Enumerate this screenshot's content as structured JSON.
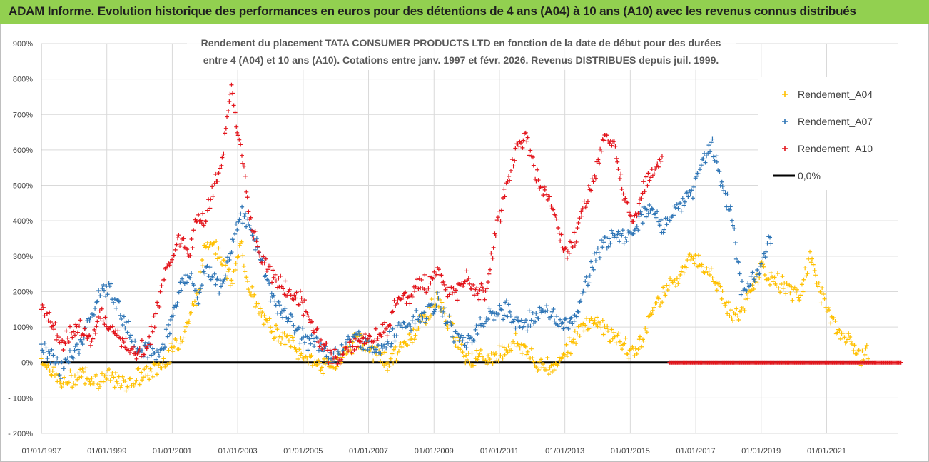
{
  "header": {
    "title": "ADAM Informe. Evolution historique des performances en euros pour des détentions de 4 ans (A04) à 10 ans (A10) avec les revenus connus distribués"
  },
  "colors": {
    "header_bg": "#92d050",
    "a04": "#ffc000",
    "a07": "#2e75b6",
    "a10": "#e3141b",
    "zero": "#000000",
    "grid": "#d9d9d9"
  },
  "chart_data": {
    "type": "scatter",
    "title_lines": [
      "Rendement du placement TATA CONSUMER PRODUCTS LTD en fonction de la date de début pour des durées",
      "entre 4 (A04) et 10 ans (A10).  Cotations entre janv. 1997 et févr. 2026. Revenus DISTRIBUES depuis juil. 1999."
    ],
    "xlabel": "",
    "ylabel": "",
    "x_ticks": [
      "01/01/1997",
      "01/01/1999",
      "01/01/2001",
      "01/01/2003",
      "01/01/2005",
      "01/01/2007",
      "01/01/2009",
      "01/01/2011",
      "01/01/2013",
      "01/01/2015",
      "01/01/2017",
      "01/01/2019",
      "01/01/2021"
    ],
    "x_range": [
      "1997-01-01",
      "2023-03-01"
    ],
    "y_ticks": [
      "900%",
      "800%",
      "700%",
      "600%",
      "500%",
      "400%",
      "300%",
      "200%",
      "100%",
      "0%",
      "- 100%",
      "- 200%"
    ],
    "ylim": [
      -200,
      900
    ],
    "legend_position": "right",
    "grid": true,
    "series": [
      {
        "name": "Rendement_A04",
        "marker": "+",
        "x": [
          1997.0,
          1997.3,
          1997.6,
          1997.9,
          1998.2,
          1998.5,
          1998.8,
          1999.1,
          1999.4,
          1999.7,
          2000.0,
          2000.3,
          2000.6,
          2000.9,
          2001.2,
          2001.5,
          2001.8,
          2002.0,
          2002.2,
          2002.5,
          2002.8,
          2003.1,
          2003.4,
          2003.7,
          2004.0,
          2004.3,
          2004.6,
          2004.9,
          2005.2,
          2005.5,
          2005.8,
          2006.1,
          2006.4,
          2006.7,
          2007.0,
          2007.3,
          2007.6,
          2007.9,
          2008.2,
          2008.5,
          2008.8,
          2009.1,
          2009.4,
          2009.7,
          2010.0,
          2010.3,
          2010.6,
          2010.9,
          2011.2,
          2011.5,
          2011.8,
          2012.1,
          2012.4,
          2012.7,
          2013.0,
          2013.3,
          2013.6,
          2013.9,
          2014.2,
          2014.5,
          2014.8,
          2015.1,
          2015.4,
          2015.7,
          2016.0,
          2016.3,
          2016.6,
          2016.9,
          2017.2,
          2017.5,
          2017.8,
          2018.1,
          2018.4,
          2018.7,
          2019.0,
          2019.3,
          2019.6,
          2019.9,
          2020.2,
          2020.5,
          2020.8,
          2021.1,
          2021.4,
          2021.7,
          2022.0,
          2022.3
        ],
        "y": [
          10,
          -20,
          -60,
          -50,
          -30,
          -40,
          -50,
          -40,
          -60,
          -55,
          -40,
          -30,
          -10,
          20,
          60,
          120,
          200,
          330,
          350,
          300,
          220,
          330,
          200,
          130,
          100,
          80,
          60,
          20,
          10,
          -5,
          -10,
          10,
          40,
          70,
          40,
          20,
          0,
          30,
          60,
          100,
          140,
          180,
          120,
          60,
          20,
          10,
          10,
          20,
          40,
          60,
          40,
          -10,
          0,
          -20,
          40,
          60,
          110,
          120,
          100,
          70,
          50,
          20,
          80,
          150,
          200,
          230,
          260,
          300,
          280,
          250,
          200,
          120,
          150,
          200,
          260,
          240,
          220,
          200,
          190,
          300,
          200,
          140,
          80,
          60,
          20,
          20
        ]
      },
      {
        "name": "Rendement_A07",
        "marker": "+",
        "x": [
          1997.0,
          1997.3,
          1997.6,
          1997.9,
          1998.2,
          1998.5,
          1998.8,
          1999.1,
          1999.4,
          1999.7,
          2000.0,
          2000.3,
          2000.6,
          2000.9,
          2001.2,
          2001.5,
          2001.8,
          2002.0,
          2002.2,
          2002.5,
          2002.8,
          2003.1,
          2003.4,
          2003.7,
          2004.0,
          2004.3,
          2004.6,
          2004.9,
          2005.2,
          2005.5,
          2005.8,
          2006.1,
          2006.4,
          2006.7,
          2007.0,
          2007.3,
          2007.6,
          2007.9,
          2008.2,
          2008.5,
          2008.8,
          2009.1,
          2009.4,
          2009.7,
          2010.0,
          2010.3,
          2010.6,
          2010.9,
          2011.2,
          2011.5,
          2011.8,
          2012.1,
          2012.4,
          2012.7,
          2013.0,
          2013.3,
          2013.6,
          2013.9,
          2014.2,
          2014.5,
          2014.8,
          2015.1,
          2015.4,
          2015.7,
          2016.0,
          2016.3,
          2016.6,
          2016.9,
          2017.2,
          2017.5,
          2017.8,
          2018.1,
          2018.4,
          2018.7,
          2019.0,
          2019.3
        ],
        "y": [
          40,
          20,
          -20,
          10,
          60,
          120,
          200,
          210,
          150,
          80,
          40,
          30,
          20,
          100,
          200,
          250,
          180,
          270,
          250,
          200,
          330,
          420,
          380,
          300,
          200,
          150,
          120,
          80,
          60,
          40,
          20,
          30,
          60,
          70,
          50,
          40,
          60,
          90,
          110,
          120,
          140,
          170,
          120,
          70,
          60,
          90,
          130,
          140,
          150,
          120,
          110,
          130,
          150,
          120,
          100,
          130,
          200,
          300,
          330,
          380,
          350,
          380,
          420,
          430,
          380,
          420,
          450,
          480,
          570,
          620,
          500,
          420,
          200,
          230,
          280,
          350
        ]
      },
      {
        "name": "Rendement_A10",
        "marker": "+",
        "x": [
          1997.0,
          1997.3,
          1997.6,
          1997.9,
          1998.2,
          1998.5,
          1998.8,
          1999.1,
          1999.4,
          1999.7,
          2000.0,
          2000.3,
          2000.6,
          2000.9,
          2001.2,
          2001.5,
          2001.8,
          2002.0,
          2002.2,
          2002.5,
          2002.8,
          2003.1,
          2003.4,
          2003.7,
          2004.0,
          2004.3,
          2004.6,
          2004.9,
          2005.2,
          2005.5,
          2005.8,
          2006.1,
          2006.4,
          2006.7,
          2007.0,
          2007.3,
          2007.6,
          2007.9,
          2008.2,
          2008.5,
          2008.8,
          2009.1,
          2009.4,
          2009.7,
          2010.0,
          2010.3,
          2010.6,
          2010.9,
          2011.2,
          2011.5,
          2011.8,
          2012.1,
          2012.4,
          2012.7,
          2013.0,
          2013.3,
          2013.6,
          2013.9,
          2014.2,
          2014.5,
          2014.8,
          2015.1,
          2015.4,
          2015.7,
          2016.0
        ],
        "y": [
          160,
          120,
          60,
          80,
          100,
          60,
          140,
          100,
          60,
          40,
          30,
          60,
          180,
          280,
          350,
          300,
          420,
          400,
          480,
          550,
          780,
          600,
          400,
          300,
          250,
          220,
          200,
          180,
          130,
          60,
          20,
          10,
          40,
          60,
          60,
          80,
          100,
          200,
          170,
          220,
          220,
          260,
          200,
          200,
          240,
          200,
          200,
          380,
          480,
          600,
          640,
          530,
          480,
          430,
          300,
          350,
          450,
          520,
          650,
          600,
          480,
          400,
          500,
          540,
          560
        ]
      }
    ],
    "reference_line": {
      "name": "0,0%",
      "y": 0
    },
    "zero_overlay": {
      "series": "Rendement_A10",
      "x_from": 2016.2,
      "x_to": 2023.3,
      "y": 0
    }
  }
}
